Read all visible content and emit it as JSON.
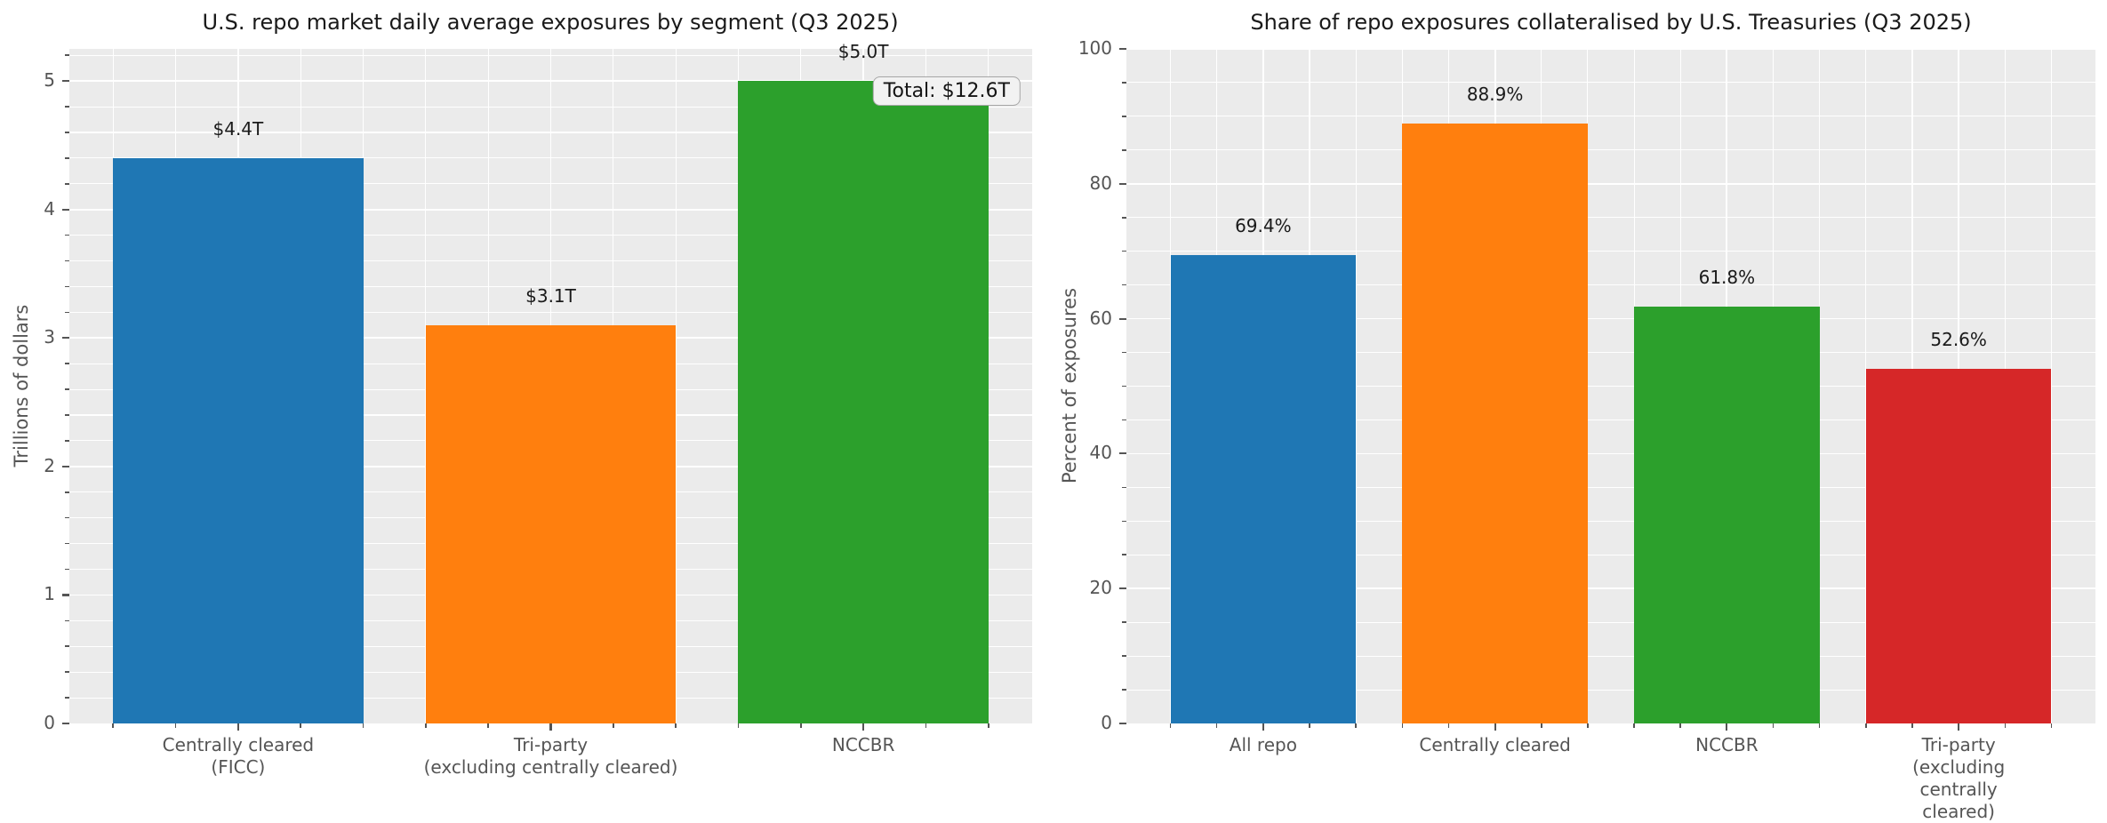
{
  "figure": {
    "background": "#ffffff"
  },
  "colors": {
    "plot_background": "#ebebeb",
    "grid": "#ffffff",
    "tick": "#555555",
    "tick_label": "#555555",
    "axis_label": "#555555",
    "title": "#1a1a1a",
    "bar_label": "#1a1a1a",
    "annotation_bg": "#f2f2f2",
    "annotation_border": "#a6a6a6",
    "annotation_text": "#141414"
  },
  "chart_data": [
    {
      "type": "bar",
      "title": "U.S. repo market daily average exposures by segment (Q3 2025)",
      "ylabel": "Trillions of dollars",
      "xlabel": "",
      "categories": [
        "Centrally cleared\n(FICC)",
        "Tri-party\n(excluding centrally cleared)",
        "NCCBR"
      ],
      "values": [
        4.4,
        3.1,
        5.0
      ],
      "bar_labels": [
        "$4.4T",
        "$3.1T",
        "$5.0T"
      ],
      "bar_colors": [
        "#1f77b4",
        "#ff7f0e",
        "#2ca02c"
      ],
      "ylim": [
        0,
        5.25
      ],
      "yticks": [
        0,
        1,
        2,
        3,
        4,
        5
      ],
      "ytick_labels": [
        "0",
        "1",
        "2",
        "3",
        "4",
        "5"
      ],
      "y_minor_step": 0.2,
      "x_minor_step": 0.2,
      "grid": true,
      "legend": false,
      "annotation": "Total: $12.6T"
    },
    {
      "type": "bar",
      "title": "Share of repo exposures collateralised by U.S. Treasuries (Q3 2025)",
      "ylabel": "Percent of exposures",
      "xlabel": "",
      "categories": [
        "All repo",
        "Centrally cleared",
        "NCCBR",
        "Tri-party\n(excluding centrally cleared)"
      ],
      "values": [
        69.4,
        88.9,
        61.8,
        52.6
      ],
      "bar_labels": [
        "69.4%",
        "88.9%",
        "61.8%",
        "52.6%"
      ],
      "bar_colors": [
        "#1f77b4",
        "#ff7f0e",
        "#2ca02c",
        "#d62728"
      ],
      "ylim": [
        0,
        100
      ],
      "yticks": [
        0,
        20,
        40,
        60,
        80,
        100
      ],
      "ytick_labels": [
        "0",
        "20",
        "40",
        "60",
        "80",
        "100"
      ],
      "y_minor_step": 5,
      "x_minor_step": 0.2,
      "grid": true,
      "legend": false
    }
  ]
}
